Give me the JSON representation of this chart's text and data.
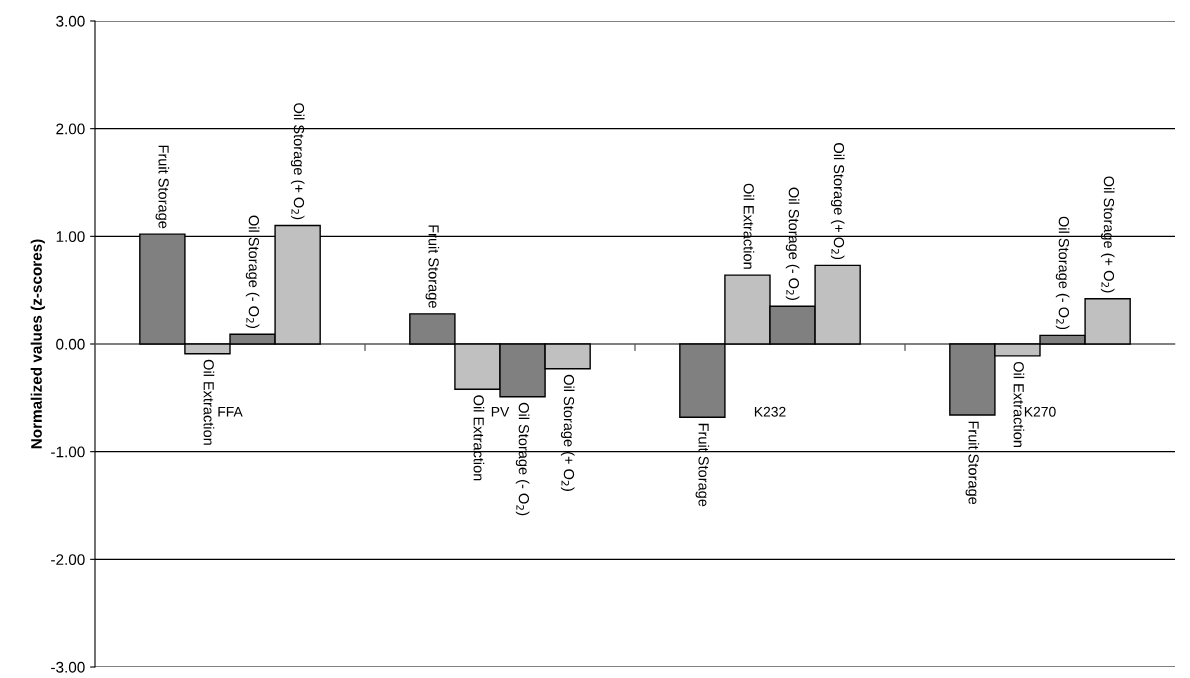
{
  "chart_data": {
    "type": "bar",
    "ylabel": "Normalized values (z-scores)",
    "categories": [
      "FFA",
      "PV",
      "K232",
      "K270"
    ],
    "series": [
      {
        "name": "Fruit Storage",
        "color": "#808080",
        "values": [
          1.02,
          0.28,
          -0.68,
          -0.66
        ]
      },
      {
        "name": "Oil Extraction",
        "color": "#c0c0c0",
        "values": [
          -0.09,
          -0.42,
          0.64,
          -0.11
        ]
      },
      {
        "name": "Oil Storage (- O$_{2}$)",
        "color": "#808080",
        "values": [
          0.09,
          -0.49,
          0.35,
          0.08
        ]
      },
      {
        "name": "Oil Storage (+ O$_{2}$)",
        "color": "#c0c0c0",
        "values": [
          1.1,
          -0.23,
          0.73,
          0.42
        ]
      }
    ],
    "ylim": [
      -3,
      3
    ],
    "yticks": [
      {
        "value": -3,
        "label": "-3.00"
      },
      {
        "value": -2,
        "label": "-2.00"
      },
      {
        "value": -1,
        "label": "-1.00"
      },
      {
        "value": 0,
        "label": "0.00"
      },
      {
        "value": 1,
        "label": "1.00"
      },
      {
        "value": 2,
        "label": "2.00"
      },
      {
        "value": 3,
        "label": "3.00"
      }
    ],
    "grid": "y",
    "legend": false
  }
}
